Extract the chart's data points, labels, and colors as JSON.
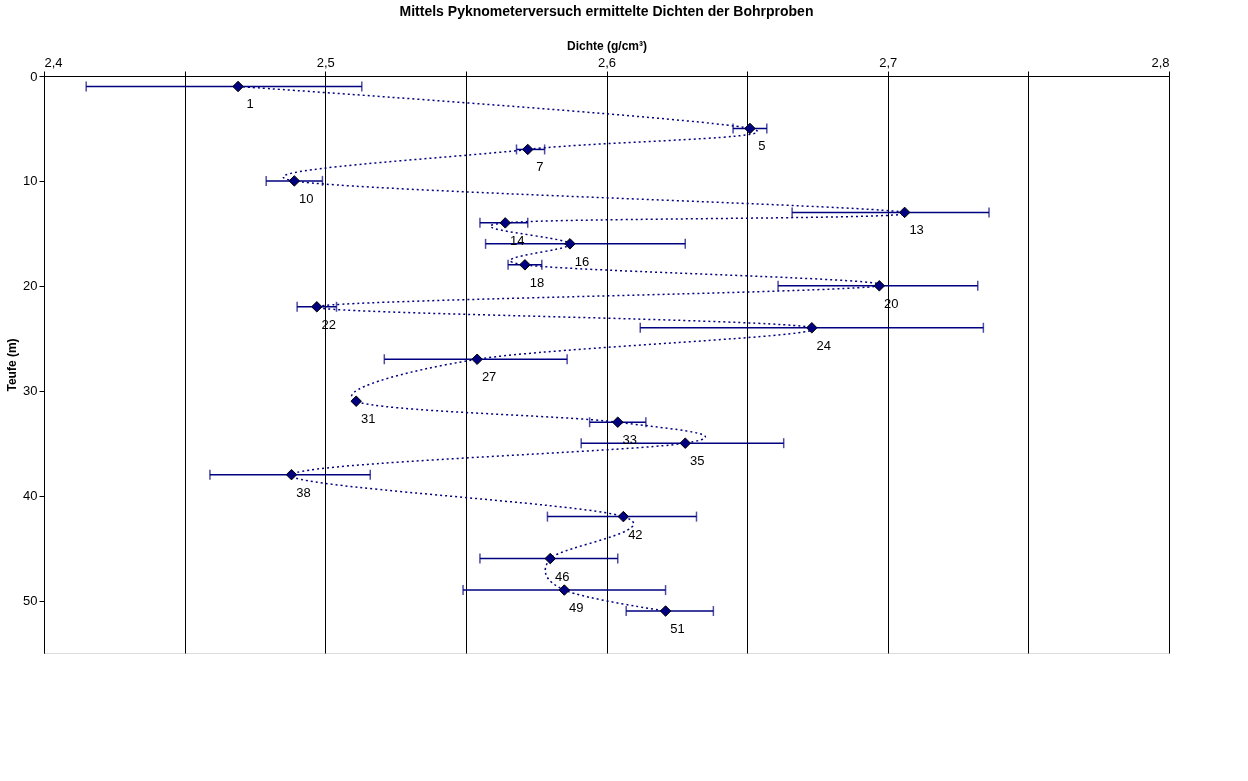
{
  "chart_data": {
    "type": "line",
    "title": "Mittels Pyknometerversuch ermittelte Dichten der Bohrproben",
    "xlabel": "Dichte (g/cm³)",
    "ylabel": "Teufe (m)",
    "series": [
      {
        "color": "#000080",
        "x": [
          2.469,
          2.651,
          2.572,
          2.489,
          2.706,
          2.564,
          2.587,
          2.571,
          2.697,
          2.497,
          2.673,
          2.554,
          2.511,
          2.604,
          2.628,
          2.488,
          2.606,
          2.58,
          2.585,
          2.621
        ],
        "values": [
          1,
          5,
          7,
          10,
          13,
          14,
          16,
          18,
          20,
          22,
          24,
          27,
          31,
          33,
          35,
          38,
          42,
          46,
          49,
          51
        ],
        "xerrors": [
          [
            2.415,
            2.513
          ],
          [
            2.645,
            2.657
          ],
          [
            2.568,
            2.578
          ],
          [
            2.479,
            2.499
          ],
          [
            2.666,
            2.736
          ],
          [
            2.555,
            2.572
          ],
          [
            2.557,
            2.628
          ],
          [
            2.565,
            2.577
          ],
          [
            2.661,
            2.732
          ],
          [
            2.49,
            2.504
          ],
          [
            2.612,
            2.734
          ],
          [
            2.521,
            2.586
          ],
          null,
          [
            2.594,
            2.614
          ],
          [
            2.591,
            2.663
          ],
          [
            2.459,
            2.516
          ],
          [
            2.579,
            2.632
          ],
          [
            2.555,
            2.604
          ],
          [
            2.549,
            2.621
          ],
          [
            2.607,
            2.638
          ]
        ]
      }
    ],
    "data_labels": true,
    "marker": "diamond",
    "line_style": "dotted",
    "xlim": [
      2.4,
      2.8
    ],
    "xticks": [
      {
        "value": 2.4,
        "label": "2,4"
      },
      {
        "value": 2.45,
        "label": null
      },
      {
        "value": 2.5,
        "label": "2,5"
      },
      {
        "value": 2.55,
        "label": null
      },
      {
        "value": 2.6,
        "label": "2,6"
      },
      {
        "value": 2.65,
        "label": null
      },
      {
        "value": 2.7,
        "label": "2,7"
      },
      {
        "value": 2.75,
        "label": null
      },
      {
        "value": 2.8,
        "label": "2,8"
      }
    ],
    "ylim": [
      55,
      0
    ],
    "yticks": [
      0,
      10,
      20,
      30,
      40,
      50
    ],
    "grid": "x"
  }
}
